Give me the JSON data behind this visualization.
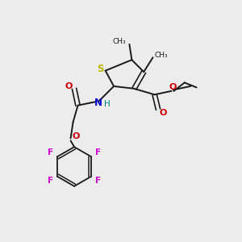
{
  "bg_color": "#ececec",
  "bond_color": "#1a1a1a",
  "S_color": "#b8b800",
  "N_color": "#0000cc",
  "O_color": "#cc0000",
  "F_color": "#cc00cc",
  "H_color": "#008080",
  "figsize": [
    3.0,
    3.0
  ],
  "dpi": 100,
  "xlim": [
    0,
    10
  ],
  "ylim": [
    0,
    10
  ]
}
